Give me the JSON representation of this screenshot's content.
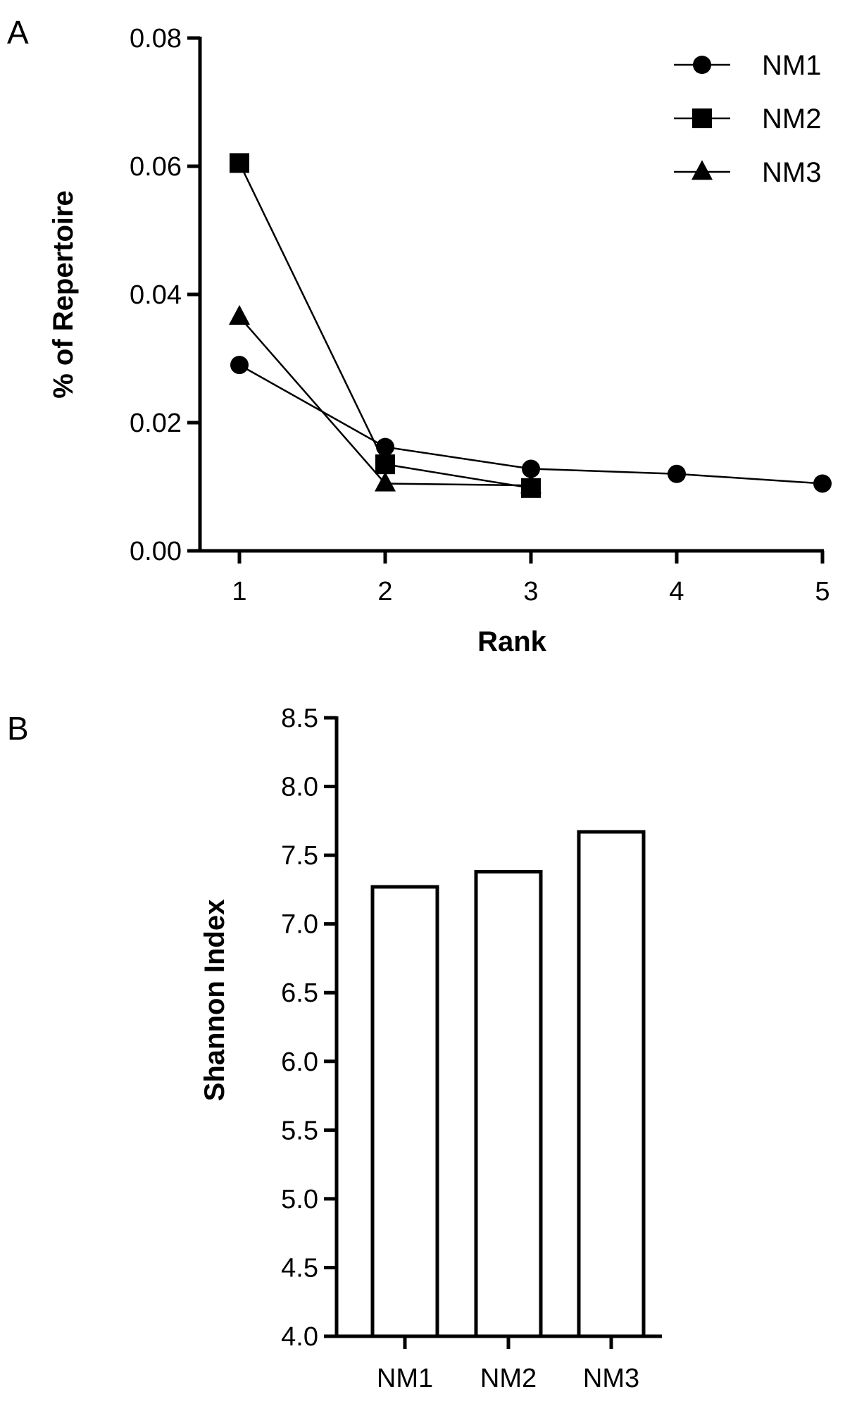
{
  "chart_data": [
    {
      "panel": "A",
      "type": "line",
      "xlabel": "Rank",
      "ylabel": "% of Repertoire",
      "x": [
        1,
        2,
        3,
        4,
        5
      ],
      "xlim": [
        1,
        5
      ],
      "ylim": [
        0,
        0.08
      ],
      "yticks": [
        "0.00",
        "0.02",
        "0.04",
        "0.06",
        "0.08"
      ],
      "xticks": [
        "1",
        "2",
        "3",
        "4",
        "5"
      ],
      "legend_position": "top-right",
      "series": [
        {
          "name": "NM1",
          "marker": "circle",
          "x": [
            1,
            2,
            3,
            4,
            5
          ],
          "values": [
            0.029,
            0.0162,
            0.0128,
            0.012,
            0.0105
          ]
        },
        {
          "name": "NM2",
          "marker": "square",
          "x": [
            1,
            2,
            3
          ],
          "values": [
            0.0605,
            0.0135,
            0.0098
          ]
        },
        {
          "name": "NM3",
          "marker": "triangle",
          "x": [
            1,
            2,
            3
          ],
          "values": [
            0.0365,
            0.0105,
            0.0102
          ]
        }
      ],
      "grid": false
    },
    {
      "panel": "B",
      "type": "bar",
      "categories": [
        "NM1",
        "NM2",
        "NM3"
      ],
      "values": [
        7.27,
        7.38,
        7.67
      ],
      "xlabel": "",
      "ylabel": "Shannon Index",
      "ylim": [
        4.0,
        8.5
      ],
      "yticks": [
        "4.0",
        "4.5",
        "5.0",
        "5.5",
        "6.0",
        "6.5",
        "7.0",
        "7.5",
        "8.0",
        "8.5"
      ],
      "grid": false
    }
  ]
}
